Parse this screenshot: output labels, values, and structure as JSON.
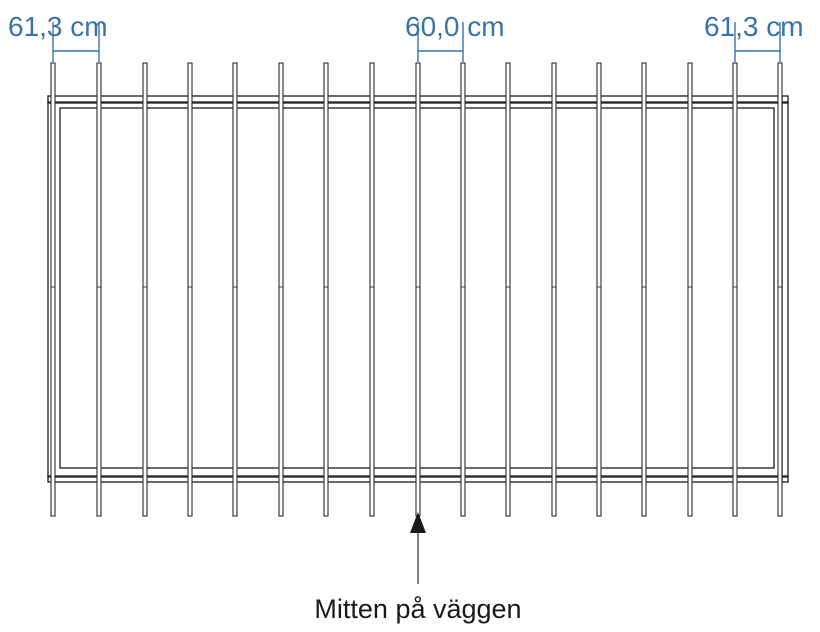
{
  "dimensions": [
    {
      "label": "61,3 cm"
    },
    {
      "label": "60,0 cm"
    },
    {
      "label": "61,3 cm"
    }
  ],
  "caption": "Mitten på väggen",
  "colors": {
    "dimension": "#3a73a6",
    "lines": "#2a2a2a",
    "background": "#ffffff"
  }
}
